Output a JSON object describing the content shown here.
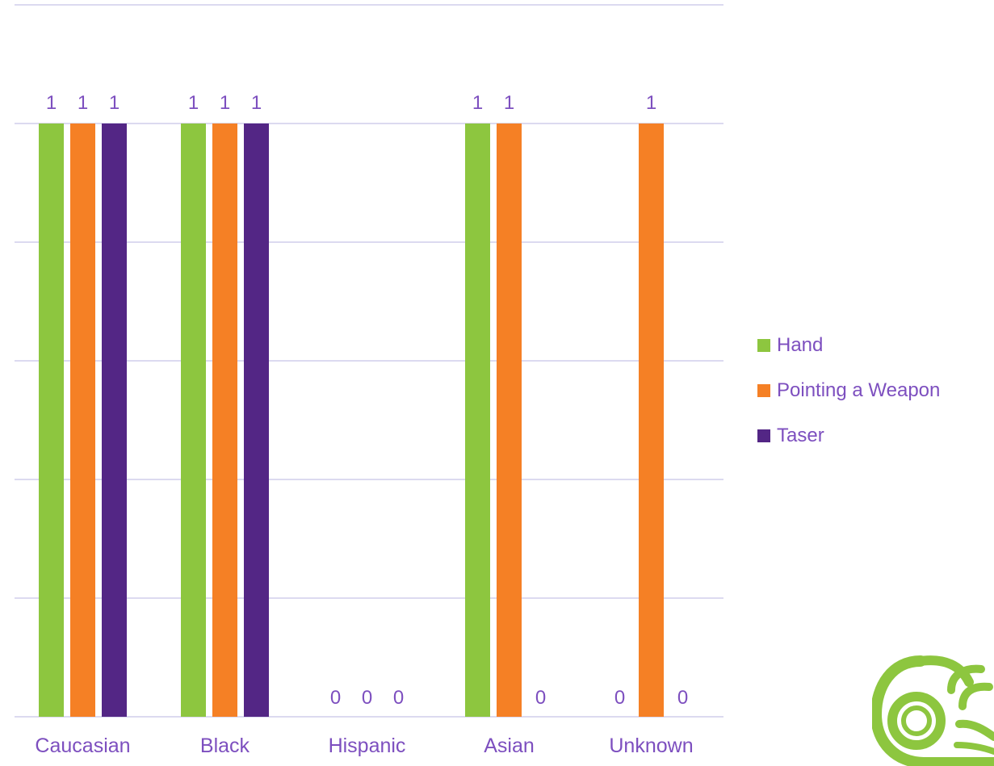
{
  "chart_data": {
    "type": "bar",
    "categories": [
      "Caucasian",
      "Black",
      "Hispanic",
      "Asian",
      "Unknown"
    ],
    "series": [
      {
        "name": "Hand",
        "color": "#8dc63f",
        "values": [
          1,
          1,
          0,
          1,
          0
        ]
      },
      {
        "name": "Pointing a Weapon",
        "color": "#f58025",
        "values": [
          1,
          1,
          0,
          1,
          1
        ]
      },
      {
        "name": "Taser",
        "color": "#532685",
        "values": [
          1,
          1,
          0,
          0,
          0
        ]
      }
    ],
    "ylim": [
      0,
      1.2
    ],
    "grid": true,
    "data_labels": true,
    "legend_position": "right",
    "label_color": "#7d4fbf",
    "grid_color": "#dcdaf0"
  },
  "logo": {
    "name": "logo-icon",
    "color": "#8dc63f"
  }
}
